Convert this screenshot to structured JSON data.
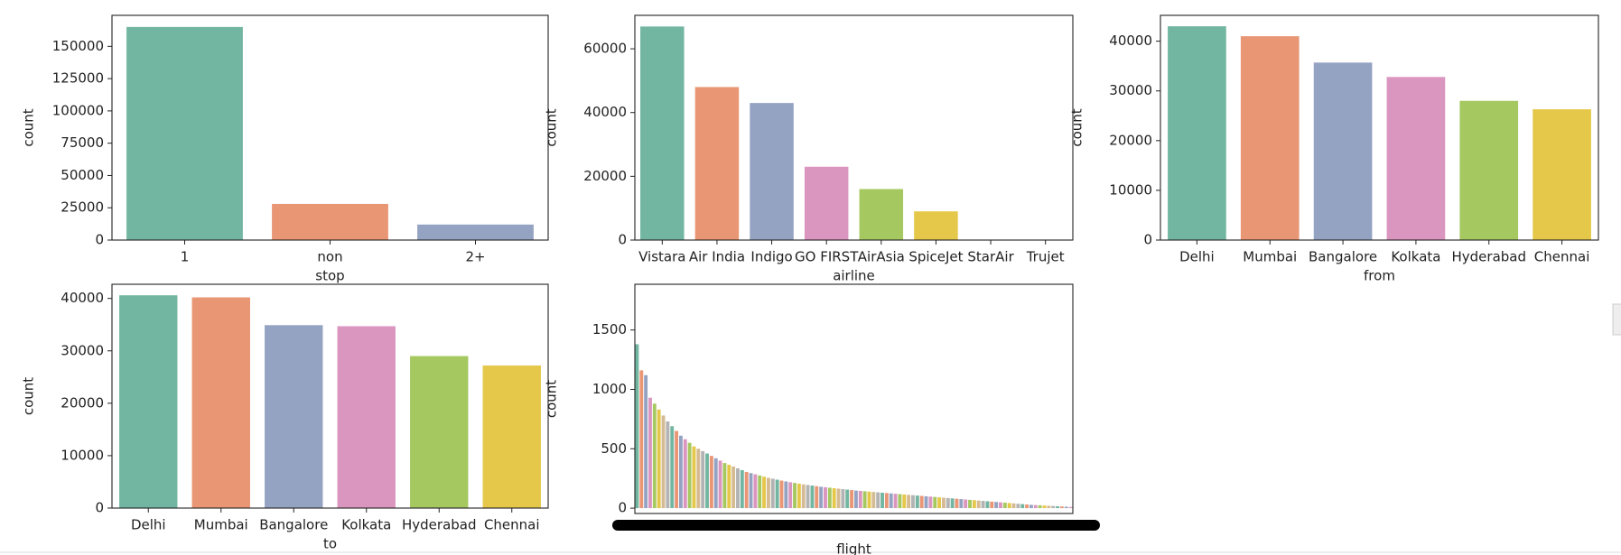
{
  "chart_data": [
    {
      "type": "bar",
      "xlabel": "stop",
      "ylabel": "count",
      "categories": [
        "1",
        "non",
        "2+"
      ],
      "values": [
        165000,
        28000,
        12000
      ],
      "colors": [
        "#72b6a1",
        "#e99675",
        "#95a3c3"
      ],
      "ylim": [
        0,
        174000
      ],
      "yticks": [
        0,
        25000,
        50000,
        75000,
        100000,
        125000,
        150000
      ]
    },
    {
      "type": "bar",
      "xlabel": "airline",
      "ylabel": "count",
      "categories": [
        "Vistara",
        "Air India",
        "Indigo",
        "GO FIRST",
        "AirAsia",
        "SpiceJet",
        "StarAir",
        "Trujet"
      ],
      "values": [
        67000,
        48000,
        43000,
        23000,
        16000,
        9000,
        60,
        40
      ],
      "colors": [
        "#72b6a1",
        "#e99675",
        "#95a3c3",
        "#db96c0",
        "#a5c861",
        "#e5c84a",
        "#d5bb93",
        "#b3b3b3"
      ],
      "ylim": [
        0,
        70500
      ],
      "yticks": [
        0,
        20000,
        40000,
        60000
      ]
    },
    {
      "type": "bar",
      "xlabel": "from",
      "ylabel": "count",
      "categories": [
        "Delhi",
        "Mumbai",
        "Bangalore",
        "Kolkata",
        "Hyderabad",
        "Chennai"
      ],
      "values": [
        43000,
        41000,
        35700,
        32800,
        28000,
        26300
      ],
      "colors": [
        "#72b6a1",
        "#e99675",
        "#95a3c3",
        "#db96c0",
        "#a5c861",
        "#e5c84a"
      ],
      "ylim": [
        0,
        45200
      ],
      "yticks": [
        0,
        10000,
        20000,
        30000,
        40000
      ]
    },
    {
      "type": "bar",
      "xlabel": "to",
      "ylabel": "count",
      "categories": [
        "Delhi",
        "Mumbai",
        "Bangalore",
        "Kolkata",
        "Hyderabad",
        "Chennai"
      ],
      "values": [
        40600,
        40200,
        34900,
        34700,
        29000,
        27200
      ],
      "colors": [
        "#72b6a1",
        "#e99675",
        "#95a3c3",
        "#db96c0",
        "#a5c861",
        "#e5c84a"
      ],
      "ylim": [
        0,
        42700
      ],
      "yticks": [
        0,
        10000,
        20000,
        30000,
        40000
      ]
    },
    {
      "type": "bar",
      "xlabel": "flight",
      "ylabel": "count",
      "categories": [
        null,
        null,
        null,
        null,
        null,
        null,
        null,
        null,
        null,
        null,
        null,
        null,
        null,
        null,
        null,
        null,
        null,
        null,
        null,
        null,
        null,
        null,
        null,
        null,
        null,
        null,
        null,
        null,
        null,
        null,
        null,
        null,
        null,
        null,
        null,
        null,
        null,
        null,
        null,
        null,
        null,
        null,
        null,
        null,
        null,
        null,
        null,
        null,
        null,
        null,
        null,
        null,
        null,
        null,
        null,
        null,
        null,
        null,
        null,
        null,
        null,
        null,
        null,
        null,
        null,
        null,
        null,
        null,
        null,
        null,
        null,
        null,
        null,
        null,
        null,
        null,
        null,
        null,
        null,
        null,
        null,
        null,
        null,
        null,
        null,
        null,
        null,
        null,
        null,
        null,
        null,
        null,
        null,
        null,
        null,
        null,
        null,
        null,
        null,
        null
      ],
      "values": [
        1380,
        1160,
        1120,
        930,
        880,
        830,
        780,
        730,
        690,
        650,
        610,
        580,
        550,
        520,
        500,
        480,
        460,
        440,
        420,
        400,
        380,
        365,
        350,
        335,
        320,
        305,
        295,
        285,
        275,
        265,
        255,
        248,
        240,
        232,
        225,
        218,
        212,
        206,
        200,
        195,
        190,
        185,
        180,
        176,
        172,
        168,
        164,
        160,
        156,
        152,
        148,
        145,
        142,
        139,
        136,
        133,
        130,
        127,
        124,
        121,
        118,
        115,
        112,
        109,
        106,
        103,
        100,
        97,
        94,
        91,
        88,
        85,
        82,
        79,
        76,
        73,
        70,
        67,
        64,
        61,
        58,
        55,
        52,
        49,
        46,
        43,
        40,
        37,
        34,
        31,
        28,
        26,
        24,
        22,
        20,
        18,
        16,
        14,
        12,
        10
      ],
      "colors": [
        "#72b6a1",
        "#e99675",
        "#95a3c3",
        "#db96c0",
        "#a5c861",
        "#e5c84a",
        "#d5bb93",
        "#b3b3b3"
      ],
      "ylim": [
        -45,
        1885
      ],
      "yticks": [
        0,
        500,
        1000,
        1500
      ]
    }
  ]
}
